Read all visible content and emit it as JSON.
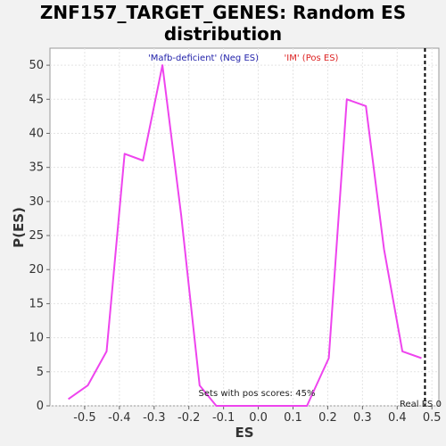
{
  "chart_data": {
    "type": "line",
    "title_line1": "ZNF157_TARGET_GENES: Random ES",
    "title_line2": "distribution",
    "xlabel": "ES",
    "ylabel": "P(ES)",
    "xlim": [
      -0.6,
      0.52
    ],
    "ylim": [
      0,
      52.5
    ],
    "x_ticks": [
      "-0.5",
      "-0.4",
      "-0.3",
      "-0.2",
      "-0.1",
      "0.0",
      "0.1",
      "0.2",
      "0.3",
      "0.4",
      "0.5"
    ],
    "x_tick_values": [
      -0.5,
      -0.4,
      -0.3,
      -0.2,
      -0.1,
      0.0,
      0.1,
      0.2,
      0.3,
      0.4,
      0.5
    ],
    "y_ticks": [
      "0",
      "5",
      "10",
      "15",
      "20",
      "25",
      "30",
      "35",
      "40",
      "45",
      "50"
    ],
    "y_tick_values": [
      0,
      5,
      10,
      15,
      20,
      25,
      30,
      35,
      40,
      45,
      50
    ],
    "grid": true,
    "series": [
      {
        "color": "#ee44ee",
        "x": [
          -0.547,
          -0.491,
          -0.437,
          -0.385,
          -0.332,
          -0.276,
          -0.222,
          -0.169,
          -0.121,
          -0.07,
          0.14,
          0.203,
          0.255,
          0.31,
          0.362,
          0.415,
          0.47
        ],
        "y": [
          1,
          3,
          8,
          37,
          36,
          50,
          28,
          3,
          0,
          0,
          0,
          7,
          45,
          44,
          23,
          8,
          7
        ]
      }
    ],
    "real_es": 0.48,
    "annotations": {
      "neg_label": "'Mafb-deficient' (Neg ES)",
      "neg_color": "#2222aa",
      "pos_label": "'IM' (Pos ES)",
      "pos_color": "#dd2222",
      "pos_scores": "Sets with pos scores: 45%",
      "real_es_label": "Real ES 0"
    }
  }
}
